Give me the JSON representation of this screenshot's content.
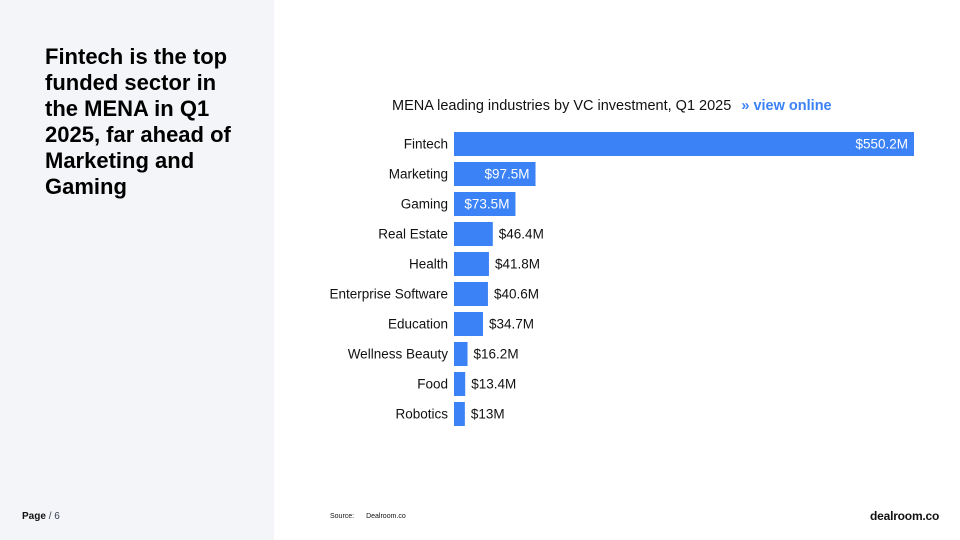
{
  "sidebar": {
    "headline": "Fintech is the top funded sector in the MENA in Q1 2025, far ahead of Marketing and Gaming",
    "page_label": "Page",
    "page_number": "/ 6"
  },
  "chart_header": {
    "title": "MENA leading industries by VC investment,  Q1 2025",
    "link_label": "» view online"
  },
  "footer": {
    "source_label": "Source:",
    "source_value": "Dealroom.co",
    "brand": "dealroom.co"
  },
  "colors": {
    "bar": "#3b82f6",
    "sidebar_bg": "#f4f5f8",
    "link": "#3b82f6"
  },
  "chart_data": {
    "type": "bar",
    "orientation": "horizontal",
    "title": "MENA leading industries by VC investment,  Q1 2025",
    "unit": "$M",
    "categories": [
      "Fintech",
      "Marketing",
      "Gaming",
      "Real Estate",
      "Health",
      "Enterprise Software",
      "Education",
      "Wellness Beauty",
      "Food",
      "Robotics"
    ],
    "values": [
      550.2,
      97.5,
      73.5,
      46.4,
      41.8,
      40.6,
      34.7,
      16.2,
      13.4,
      13
    ],
    "labels": [
      "$550.2M",
      "$97.5M",
      "$73.5M",
      "$46.4M",
      "$41.8M",
      "$40.6M",
      "$34.7M",
      "$16.2M",
      "$13.4M",
      "$13M"
    ],
    "xlim": [
      0,
      550.2
    ],
    "grid": false,
    "legend": false
  }
}
